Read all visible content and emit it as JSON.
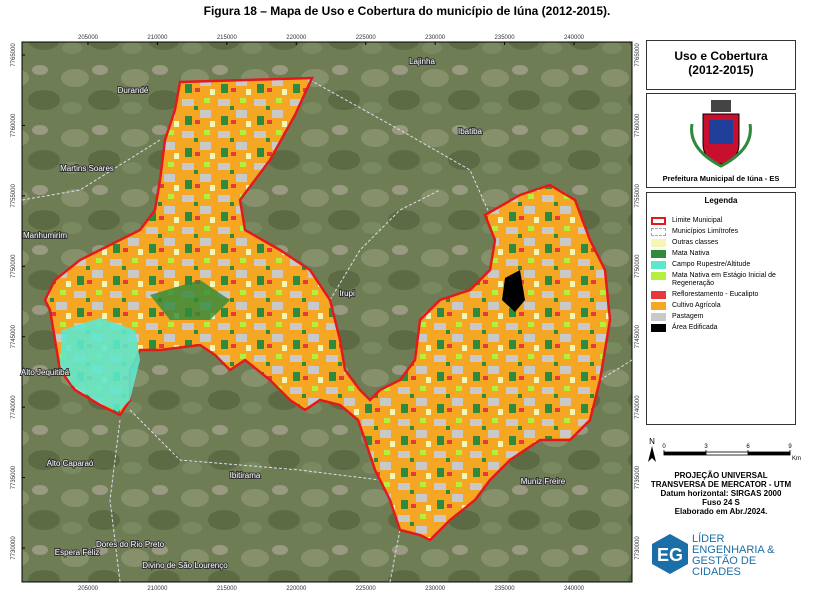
{
  "figure_title": "Figura 18 – Mapa de Uso e Cobertura do município de Iúna (2012-2015).",
  "map": {
    "x_ticks": [
      205000,
      210000,
      215000,
      220000,
      225000,
      230000,
      235000,
      240000
    ],
    "y_ticks": [
      7765000,
      7760000,
      7755000,
      7750000,
      7745000,
      7740000,
      7735000,
      7730000
    ],
    "places": [
      "Lajinha",
      "Durandé",
      "Ibatiba",
      "Martins Soares",
      "Manhumirim",
      "Irupi",
      "Alto Jequitibá",
      "Alto Caparaó",
      "Ibitirama",
      "Muniz Freire",
      "Dores do Rio Preto",
      "Espera Feliz",
      "Divino de São Lourenço"
    ]
  },
  "panel": {
    "title": [
      "Uso e Cobertura",
      "(2012-2015)"
    ],
    "emblem_caption": "Prefeitura Municipal de Iúna - ES",
    "legend_title": "Legenda",
    "legend": [
      {
        "label": "Limite Municipal",
        "color": "#e31a1c"
      },
      {
        "label": "Municípios Limítrofes",
        "color": "#9aa6b8"
      },
      {
        "label": "Outras classes",
        "color": "#f4f6b4"
      },
      {
        "label": "Mata Nativa",
        "color": "#2f8a3c"
      },
      {
        "label": "Campo Rupestre/Altitude",
        "color": "#5de8cc"
      },
      {
        "label": "Mata Nativa em Estágio Inicial de Regeneração",
        "color": "#b4f03c"
      },
      {
        "label": "Reflorestamento - Eucalipto",
        "color": "#e8393a"
      },
      {
        "label": "Cultivo Agrícola",
        "color": "#f5a623"
      },
      {
        "label": "Pastagem",
        "color": "#c9c9c9"
      },
      {
        "label": "Área Edificada",
        "color": "#000000"
      }
    ],
    "north": "N",
    "scale": [
      0,
      3,
      6,
      9
    ],
    "scale_unit": "Km",
    "projection": [
      "PROJEÇÃO UNIVERSAL",
      "TRANSVERSA DE MERCATOR - UTM",
      "Datum horizontal: SIRGAS 2000",
      "Fuso 24 S",
      "Elaborado em Abr./2024."
    ],
    "logo": [
      "LÍDER",
      "ENGENHARIA &",
      "GESTÃO DE CIDADES"
    ]
  }
}
